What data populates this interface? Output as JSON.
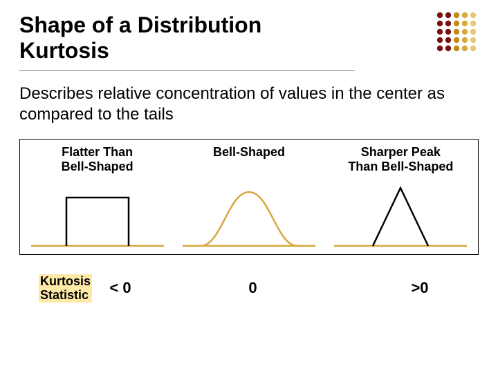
{
  "title_line1": "Shape of a Distribution",
  "title_line2": "Kurtosis",
  "description": "Describes relative concentration of values in the center as compared to the tails",
  "dot_grid": {
    "cols": 5,
    "rows": 5,
    "radius": 4.2,
    "step": 12,
    "colors_by_col": [
      "#7b1010",
      "#7b1010",
      "#c08a14",
      "#d6a83e",
      "#e6c878"
    ]
  },
  "panels": {
    "border_color": "#000000",
    "shape_stroke": "#d6a83e",
    "shape_stroke_dark": "#000000",
    "baseline_color": "#d6a83e",
    "stroke_width": 2.5,
    "items": [
      {
        "label": "Flatter Than\nBell-Shaped",
        "type": "rect"
      },
      {
        "label": "Bell-Shaped",
        "type": "bell"
      },
      {
        "label": "Sharper Peak\nThan Bell-Shaped",
        "type": "peak"
      }
    ]
  },
  "stat": {
    "label_line1": "Kurtosis",
    "label_line2": "Statistic",
    "values": [
      "< 0",
      "0",
      ">0"
    ]
  },
  "colors": {
    "background": "#ffffff",
    "text": "#000000",
    "underline": "#808080",
    "highlight_bg": "#ffe9a8"
  },
  "fonts": {
    "title_size": 32,
    "body_size": 24,
    "panel_label_size": 18,
    "stat_value_size": 22
  }
}
